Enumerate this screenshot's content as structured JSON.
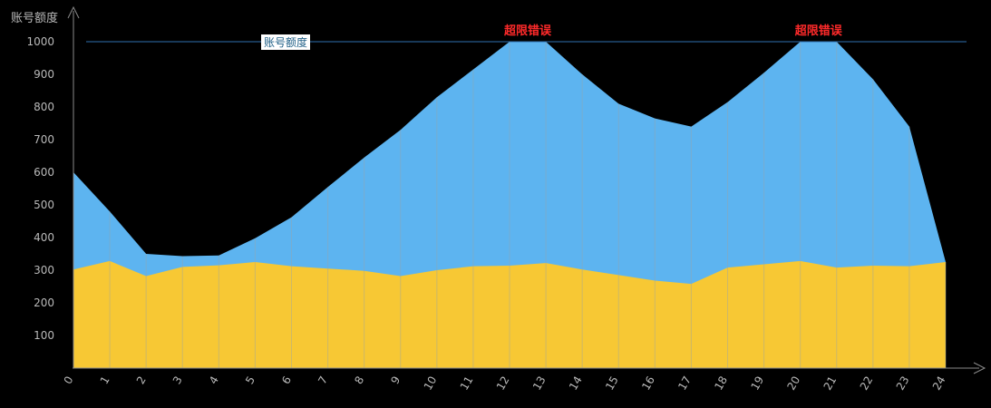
{
  "chart_data": {
    "type": "area",
    "ylabel": "账号额度",
    "x": [
      0,
      1,
      2,
      3,
      4,
      5,
      6,
      7,
      8,
      9,
      10,
      11,
      12,
      13,
      14,
      15,
      16,
      17,
      18,
      19,
      20,
      21,
      22,
      23,
      24
    ],
    "y_ticks": [
      100,
      200,
      300,
      400,
      500,
      600,
      700,
      800,
      900,
      1000
    ],
    "ylim": [
      0,
      1000
    ],
    "series": [
      {
        "color": "#5db4f0",
        "values": [
          600,
          480,
          350,
          343,
          345,
          398,
          462,
          555,
          645,
          730,
          830,
          915,
          1000,
          1000,
          900,
          810,
          765,
          740,
          815,
          905,
          1000,
          1000,
          885,
          740,
          325
        ]
      },
      {
        "color": "#f7c834",
        "values": [
          302,
          328,
          282,
          310,
          315,
          325,
          312,
          305,
          298,
          282,
          300,
          312,
          314,
          322,
          302,
          285,
          268,
          258,
          308,
          318,
          328,
          308,
          314,
          312,
          325
        ]
      }
    ],
    "reference_line": {
      "value": 1000,
      "label": "账号额度",
      "color": "#2f6fb0"
    },
    "annotations": [
      {
        "text": "超限错误",
        "x": 12.5,
        "color": "#ff2a2a"
      },
      {
        "text": "超限错误",
        "x": 20.5,
        "color": "#ff2a2a"
      }
    ],
    "grid": false,
    "legend": "none"
  }
}
